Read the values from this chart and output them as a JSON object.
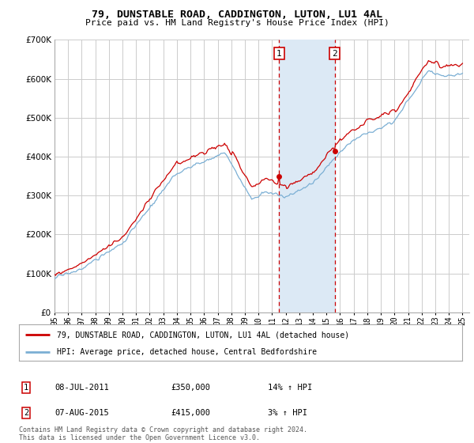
{
  "title1": "79, DUNSTABLE ROAD, CADDINGTON, LUTON, LU1 4AL",
  "title2": "Price paid vs. HM Land Registry's House Price Index (HPI)",
  "legend_line1": "79, DUNSTABLE ROAD, CADDINGTON, LUTON, LU1 4AL (detached house)",
  "legend_line2": "HPI: Average price, detached house, Central Bedfordshire",
  "annotation1_date": "08-JUL-2011",
  "annotation1_price": "£350,000",
  "annotation1_hpi": "14% ↑ HPI",
  "annotation2_date": "07-AUG-2015",
  "annotation2_price": "£415,000",
  "annotation2_hpi": "3% ↑ HPI",
  "footer": "Contains HM Land Registry data © Crown copyright and database right 2024.\nThis data is licensed under the Open Government Licence v3.0.",
  "sale1_year": 2011.52,
  "sale1_value": 350000,
  "sale2_year": 2015.6,
  "sale2_value": 415000,
  "ylim_min": 0,
  "ylim_max": 700000,
  "xlim_min": 1995,
  "xlim_max": 2025.5,
  "hpi_color": "#7bafd4",
  "property_color": "#cc0000",
  "shade_color": "#dce9f5",
  "vline_color": "#cc0000",
  "grid_color": "#cccccc",
  "background_color": "#ffffff"
}
